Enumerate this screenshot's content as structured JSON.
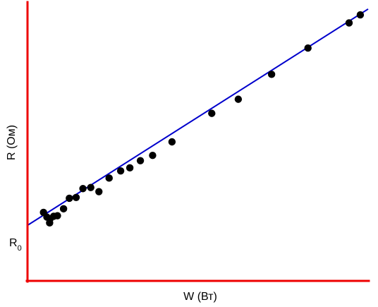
{
  "chart_data": {
    "type": "scatter",
    "title": "",
    "xlabel": "W (Вт)",
    "ylabel": "R (Ом)",
    "intercept_label": {
      "base": "R",
      "subscript": "0"
    },
    "xlim": [
      0,
      100
    ],
    "ylim": [
      0,
      100
    ],
    "x_ticks": [],
    "y_ticks": [],
    "grid": false,
    "legend": "none",
    "series": [
      {
        "type": "scatter",
        "marker_color": "#000000",
        "points": [
          [
            4.5,
            24.5
          ],
          [
            5.5,
            22.8
          ],
          [
            6.3,
            20.7
          ],
          [
            6.4,
            22.1
          ],
          [
            7.5,
            23.1
          ],
          [
            8.6,
            23.3
          ],
          [
            10.4,
            25.8
          ],
          [
            12.1,
            29.6
          ],
          [
            14.1,
            29.9
          ],
          [
            16.1,
            33.1
          ],
          [
            18.4,
            33.5
          ],
          [
            20.8,
            32.0
          ],
          [
            23.8,
            36.9
          ],
          [
            27.2,
            39.5
          ],
          [
            29.9,
            40.6
          ],
          [
            33.0,
            43.2
          ],
          [
            36.6,
            45.1
          ],
          [
            42.3,
            50.0
          ],
          [
            54.0,
            60.3
          ],
          [
            61.8,
            65.4
          ],
          [
            71.6,
            74.4
          ],
          [
            82.3,
            83.9
          ],
          [
            94.4,
            93.0
          ],
          [
            97.7,
            95.9
          ]
        ]
      },
      {
        "type": "line",
        "line_color": "#0000cc",
        "points": [
          [
            0,
            20
          ],
          [
            100,
            98
          ]
        ]
      }
    ],
    "colors": {
      "axes": "#ee0000",
      "points": "#000000",
      "fit_line": "#0000cc"
    }
  }
}
